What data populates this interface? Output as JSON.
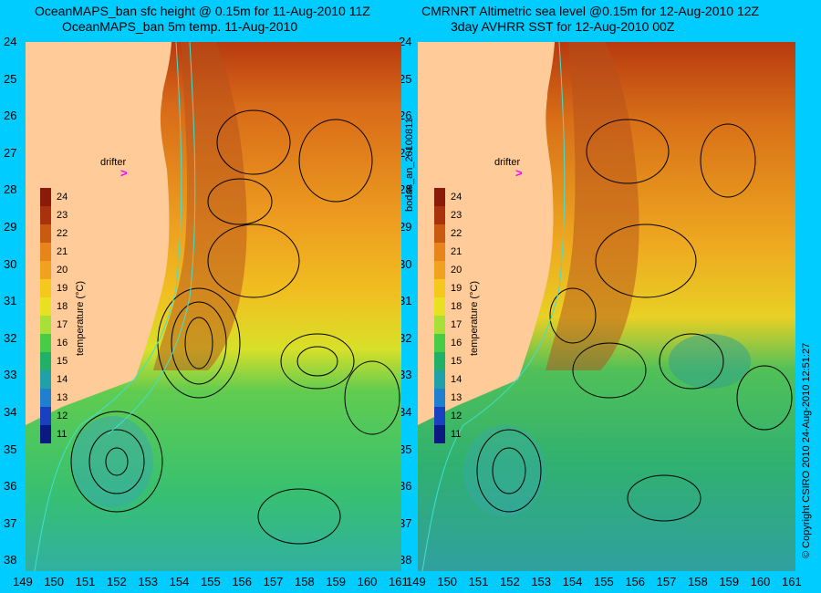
{
  "left_panel": {
    "title_line1": "OceanMAPS_ban sfc height @ 0.15m for 11-Aug-2010 11Z",
    "title_line2": "OceanMAPS_ban 5m temp. 11-Aug-2010"
  },
  "right_panel": {
    "title_line1": "CMRNRT Altimetric sea level  @0.15m  for 12-Aug-2010 12Z",
    "title_line2": "3day AVHRR SST for 12-Aug-2010 00Z"
  },
  "middle_label": "bodas_an_20100811",
  "right_side_label": "© Copyright CSIRO 2010    24-Aug-2010 12:51:27",
  "drifter_label": "drifter",
  "latitude_ticks": [
    "24",
    "25",
    "26",
    "27",
    "28",
    "29",
    "30",
    "31",
    "32",
    "33",
    "34",
    "35",
    "36",
    "37",
    "38"
  ],
  "longitude_ticks": [
    "149",
    "150",
    "151",
    "152",
    "153",
    "154",
    "155",
    "156",
    "157",
    "158",
    "159",
    "160",
    "161"
  ],
  "colorbar": {
    "title": "temperature (°C)",
    "labels": [
      "24",
      "23",
      "22",
      "21",
      "20",
      "19",
      "18",
      "17",
      "16",
      "15",
      "14",
      "13",
      "12",
      "11"
    ],
    "colors": [
      "#8b1a0a",
      "#a8320e",
      "#c95a12",
      "#e8851a",
      "#f0a21e",
      "#f6c81c",
      "#e8e020",
      "#a8e038",
      "#48cc48",
      "#20b068",
      "#20a0a8",
      "#2080d0",
      "#1840c0",
      "#0a1a80"
    ]
  },
  "colors": {
    "background": "#00ccff",
    "land": "#ffcc99",
    "contour": "#000000",
    "isobath": "#40e0d0",
    "drifter": "#ff00ff"
  }
}
